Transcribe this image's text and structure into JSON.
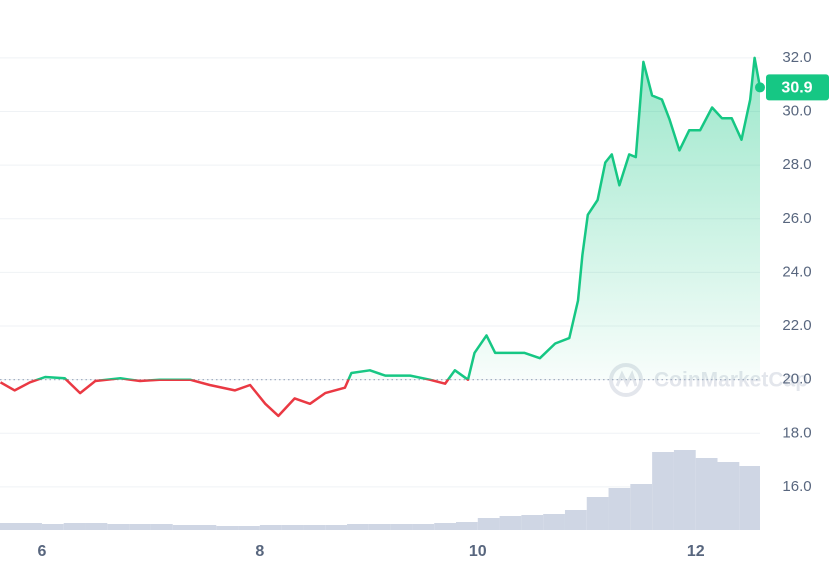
{
  "chart_data": {
    "type": "line",
    "x": [
      5.62,
      5.75,
      5.89,
      6.03,
      6.21,
      6.35,
      6.49,
      6.72,
      6.9,
      7.08,
      7.36,
      7.54,
      7.77,
      7.91,
      8.05,
      8.17,
      8.32,
      8.46,
      8.6,
      8.78,
      8.84,
      9.01,
      9.15,
      9.38,
      9.56,
      9.7,
      9.79,
      9.91,
      9.97,
      10.08,
      10.16,
      10.29,
      10.43,
      10.57,
      10.71,
      10.84,
      10.92,
      10.96,
      11.01,
      11.1,
      11.17,
      11.23,
      11.3,
      11.39,
      11.45,
      11.52,
      11.6,
      11.69,
      11.76,
      11.85,
      11.94,
      12.04,
      12.15,
      12.24,
      12.33,
      12.42,
      12.5,
      12.54,
      12.59
    ],
    "series": [
      {
        "name": "Price",
        "up_color": "#16c784",
        "down_color": "#ea3943",
        "values": [
          19.9,
          19.6,
          19.9,
          20.1,
          20.05,
          19.5,
          19.95,
          20.05,
          19.95,
          20.0,
          20.0,
          19.8,
          19.6,
          19.8,
          19.1,
          18.65,
          19.3,
          19.1,
          19.5,
          19.7,
          20.25,
          20.35,
          20.15,
          20.15,
          20.0,
          19.85,
          20.35,
          20.0,
          21.0,
          21.65,
          21.0,
          21.0,
          21.0,
          20.8,
          21.35,
          21.55,
          22.95,
          24.65,
          26.15,
          26.7,
          28.1,
          28.4,
          27.25,
          28.4,
          28.3,
          31.85,
          30.6,
          30.45,
          29.7,
          28.55,
          29.3,
          29.3,
          30.15,
          29.75,
          29.75,
          28.95,
          30.45,
          32.0,
          30.9
        ]
      }
    ],
    "baseline": 20,
    "current_price": 30.9,
    "volume": {
      "color": "#cfd6e4",
      "x": [
        5.7,
        5.9,
        6.1,
        6.3,
        6.5,
        6.7,
        6.9,
        7.1,
        7.3,
        7.5,
        7.7,
        7.9,
        8.1,
        8.3,
        8.5,
        8.7,
        8.9,
        9.1,
        9.3,
        9.5,
        9.7,
        9.9,
        10.1,
        10.3,
        10.5,
        10.7,
        10.9,
        11.1,
        11.3,
        11.5,
        11.7,
        11.9,
        12.1,
        12.3,
        12.5
      ],
      "values": [
        7,
        7,
        6,
        7,
        7,
        6,
        6,
        6,
        5,
        5,
        4,
        4,
        5,
        5,
        5,
        5,
        6,
        6,
        6,
        6,
        7,
        8,
        12,
        14,
        15,
        16,
        20,
        33,
        42,
        46,
        78,
        80,
        72,
        68,
        64
      ],
      "ylim": [
        0,
        100
      ]
    },
    "xlim": [
      5.615,
      12.59
    ],
    "xticks": [
      6,
      8,
      10,
      12
    ],
    "ylim": [
      14.02,
      34.16
    ],
    "yticks": [
      {
        "value": 16,
        "label": "16.0"
      },
      {
        "value": 18,
        "label": "18.0"
      },
      {
        "value": 20,
        "label": "20.0"
      },
      {
        "value": 22,
        "label": "22.0"
      },
      {
        "value": 24,
        "label": "24.0"
      },
      {
        "value": 26,
        "label": "26.0"
      },
      {
        "value": 28,
        "label": "28.0"
      },
      {
        "value": 30,
        "label": "30.0"
      },
      {
        "value": 32,
        "label": "32.0"
      }
    ],
    "grid": true,
    "watermark": "CoinMarketCap"
  }
}
